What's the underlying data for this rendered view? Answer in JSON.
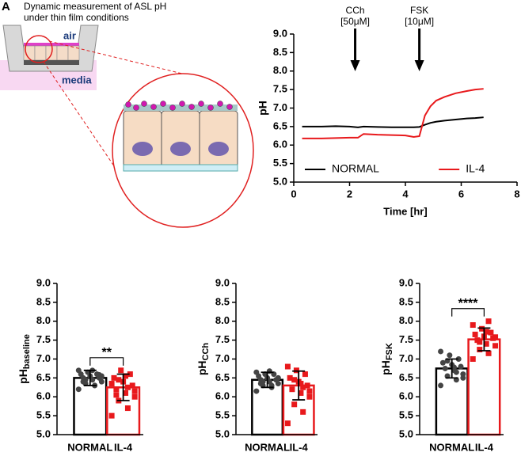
{
  "diagram": {
    "panel": "A",
    "title": [
      "Dynamic measurement of ASL pH",
      "under thin film conditions"
    ],
    "labels": [
      "air",
      "media"
    ]
  },
  "chart_data": [
    {
      "type": "line",
      "xlabel": "Time [hr]",
      "ylabel": "pH",
      "x": [
        0.3,
        1,
        1.5,
        2,
        2.3,
        2.5,
        3,
        3.5,
        4,
        4.3,
        4.5,
        4.7,
        4.9,
        5.1,
        5.4,
        5.8,
        6.2,
        6.5,
        6.8
      ],
      "series": [
        {
          "name": "NORMAL",
          "color": "#000000",
          "values": [
            6.5,
            6.5,
            6.51,
            6.5,
            6.48,
            6.5,
            6.49,
            6.48,
            6.48,
            6.48,
            6.49,
            6.55,
            6.6,
            6.63,
            6.66,
            6.69,
            6.72,
            6.73,
            6.75
          ]
        },
        {
          "name": "IL-4",
          "color": "#e8191c",
          "values": [
            6.18,
            6.18,
            6.19,
            6.2,
            6.2,
            6.3,
            6.28,
            6.27,
            6.26,
            6.22,
            6.24,
            6.8,
            7.05,
            7.2,
            7.3,
            7.4,
            7.46,
            7.5,
            7.52
          ]
        }
      ],
      "annotations": [
        {
          "x": 2.2,
          "text": [
            "CCh",
            "[50μM]"
          ]
        },
        {
          "x": 4.5,
          "text": [
            "FSK",
            "[10μM]"
          ]
        }
      ],
      "xlim": [
        0,
        8
      ],
      "xticks": [
        0,
        2,
        4,
        6,
        8
      ],
      "ylim": [
        5,
        9
      ],
      "yticks": [
        {
          "value": 5,
          "label": "5.0"
        },
        {
          "value": 5.5,
          "label": "5.5"
        },
        {
          "value": 6,
          "label": "6.0"
        },
        {
          "value": 6.5,
          "label": "6.5"
        },
        {
          "value": 7,
          "label": "7.0"
        },
        {
          "value": 7.5,
          "label": "7.5"
        },
        {
          "value": 8,
          "label": "8.0"
        },
        {
          "value": 8.5,
          "label": "8.5"
        },
        {
          "value": 9,
          "label": "9.0"
        }
      ],
      "legend": "bottom"
    },
    {
      "type": "bar",
      "ylabel": "pH",
      "ylabel_sub": "baseline",
      "categories": [
        "NORMAL",
        "IL-4"
      ],
      "colors": [
        "#000000",
        "#e8191c"
      ],
      "values": [
        6.5,
        6.25
      ],
      "errors": [
        0.2,
        0.35
      ],
      "significance": "**",
      "points": [
        [
          6.2,
          6.3,
          6.35,
          6.4,
          6.45,
          6.5,
          6.5,
          6.55,
          6.6,
          6.6,
          6.65,
          6.7,
          6.3,
          6.45,
          6.55,
          6.7,
          6.4,
          6.58
        ],
        [
          5.5,
          5.7,
          5.9,
          6.0,
          6.1,
          6.2,
          6.3,
          6.4,
          6.5,
          6.6,
          6.7,
          6.35,
          6.25,
          6.45,
          6.15,
          6.55,
          6.05
        ]
      ],
      "ylim": [
        5,
        9
      ],
      "yticks": [
        {
          "value": 5,
          "label": "5.0"
        },
        {
          "value": 5.5,
          "label": "5.5"
        },
        {
          "value": 6,
          "label": "6.0"
        },
        {
          "value": 6.5,
          "label": "6.5"
        },
        {
          "value": 7,
          "label": "7.0"
        },
        {
          "value": 7.5,
          "label": "7.5"
        },
        {
          "value": 8,
          "label": "8.0"
        },
        {
          "value": 8.5,
          "label": "8.5"
        },
        {
          "value": 9,
          "label": "9.0"
        }
      ]
    },
    {
      "type": "bar",
      "ylabel": "pH",
      "ylabel_sub": "CCh",
      "categories": [
        "NORMAL",
        "IL-4"
      ],
      "colors": [
        "#000000",
        "#e8191c"
      ],
      "values": [
        6.45,
        6.3
      ],
      "errors": [
        0.2,
        0.38
      ],
      "points": [
        [
          6.15,
          6.25,
          6.3,
          6.35,
          6.4,
          6.45,
          6.45,
          6.5,
          6.55,
          6.6,
          6.6,
          6.65,
          6.3,
          6.4,
          6.5,
          6.68,
          6.35
        ],
        [
          5.3,
          5.6,
          5.8,
          6.0,
          6.1,
          6.2,
          6.3,
          6.4,
          6.5,
          6.6,
          6.7,
          6.8,
          6.25,
          6.45,
          6.15,
          6.35
        ]
      ],
      "ylim": [
        5,
        9
      ],
      "yticks": [
        {
          "value": 5,
          "label": "5.0"
        },
        {
          "value": 5.5,
          "label": "5.5"
        },
        {
          "value": 6,
          "label": "6.0"
        },
        {
          "value": 6.5,
          "label": "6.5"
        },
        {
          "value": 7,
          "label": "7.0"
        },
        {
          "value": 7.5,
          "label": "7.5"
        },
        {
          "value": 8,
          "label": "8.0"
        },
        {
          "value": 8.5,
          "label": "8.5"
        },
        {
          "value": 9,
          "label": "9.0"
        }
      ]
    },
    {
      "type": "bar",
      "ylabel": "pH",
      "ylabel_sub": "FSK",
      "categories": [
        "NORMAL",
        "IL-4"
      ],
      "colors": [
        "#000000",
        "#e8191c"
      ],
      "values": [
        6.75,
        7.52
      ],
      "errors": [
        0.25,
        0.3
      ],
      "significance": "****",
      "points": [
        [
          6.3,
          6.45,
          6.55,
          6.6,
          6.7,
          6.75,
          6.8,
          6.85,
          6.9,
          7.0,
          7.1,
          7.2,
          6.65,
          6.95,
          6.5,
          6.78
        ],
        [
          7.0,
          7.15,
          7.25,
          7.35,
          7.4,
          7.5,
          7.55,
          7.6,
          7.65,
          7.7,
          7.8,
          7.9,
          8.0,
          7.45,
          7.58,
          7.72
        ]
      ],
      "ylim": [
        5,
        9
      ],
      "yticks": [
        {
          "value": 5,
          "label": "5.0"
        },
        {
          "value": 5.5,
          "label": "5.5"
        },
        {
          "value": 6,
          "label": "6.0"
        },
        {
          "value": 6.5,
          "label": "6.5"
        },
        {
          "value": 7,
          "label": "7.0"
        },
        {
          "value": 7.5,
          "label": "7.5"
        },
        {
          "value": 8,
          "label": "8.0"
        },
        {
          "value": 8.5,
          "label": "8.5"
        },
        {
          "value": 9,
          "label": "9.0"
        }
      ]
    }
  ]
}
